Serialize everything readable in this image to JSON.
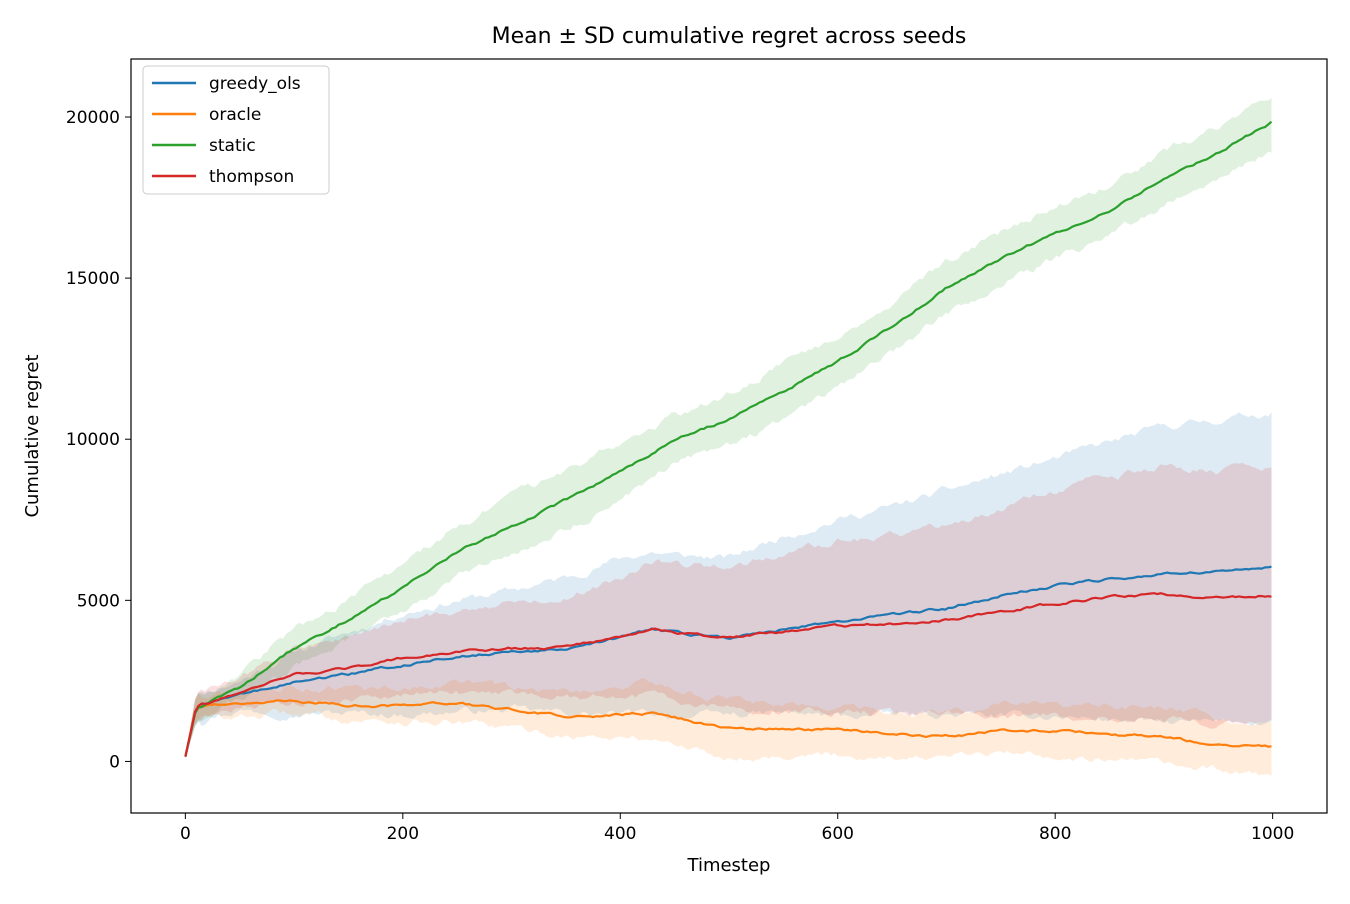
{
  "chart_data": {
    "type": "line",
    "title": "Mean ± SD cumulative regret across seeds",
    "xlabel": "Timestep",
    "ylabel": "Cumulative regret",
    "xlim": [
      -50,
      1050
    ],
    "ylim": [
      -1600,
      21800
    ],
    "xticks": [
      0,
      200,
      400,
      600,
      800,
      1000
    ],
    "yticks": [
      0,
      5000,
      10000,
      15000,
      20000
    ],
    "grid": false,
    "legend_position": "top-left",
    "series": [
      {
        "name": "greedy_ols",
        "color": "#1f77b4",
        "band_opacity": 0.15,
        "x": [
          0,
          10,
          20,
          50,
          100,
          150,
          200,
          250,
          300,
          350,
          400,
          430,
          450,
          500,
          550,
          600,
          650,
          700,
          750,
          800,
          850,
          900,
          950,
          1000
        ],
        "mean": [
          150,
          1650,
          1800,
          2050,
          2450,
          2700,
          3000,
          3250,
          3400,
          3450,
          3850,
          4100,
          4000,
          3850,
          4100,
          4350,
          4550,
          4750,
          5150,
          5450,
          5650,
          5850,
          5900,
          6050
        ],
        "lower": [
          100,
          1200,
          1400,
          1600,
          1500,
          1500,
          1450,
          1550,
          1600,
          1500,
          1450,
          1500,
          1400,
          1450,
          1500,
          1400,
          1450,
          1450,
          1400,
          1400,
          1300,
          1200,
          1200,
          1250
        ],
        "upper": [
          200,
          2100,
          2200,
          2500,
          3400,
          4000,
          4600,
          5000,
          5300,
          5700,
          6300,
          6500,
          6400,
          6300,
          7000,
          7500,
          7900,
          8400,
          8900,
          9400,
          9900,
          10400,
          10600,
          10850
        ]
      },
      {
        "name": "oracle",
        "color": "#ff7f0e",
        "band_opacity": 0.15,
        "x": [
          0,
          10,
          20,
          50,
          100,
          150,
          200,
          250,
          300,
          350,
          400,
          430,
          450,
          500,
          550,
          600,
          650,
          700,
          750,
          800,
          850,
          900,
          950,
          1000
        ],
        "mean": [
          150,
          1700,
          1750,
          1800,
          1900,
          1750,
          1750,
          1800,
          1600,
          1400,
          1450,
          1500,
          1350,
          1000,
          1000,
          1000,
          850,
          800,
          950,
          950,
          850,
          750,
          500,
          450
        ],
        "lower": [
          100,
          1300,
          1350,
          1400,
          1500,
          1300,
          1250,
          1200,
          1000,
          800,
          700,
          700,
          550,
          100,
          200,
          200,
          150,
          100,
          250,
          200,
          50,
          -100,
          -300,
          -450
        ],
        "upper": [
          200,
          2100,
          2150,
          2200,
          2300,
          2250,
          2300,
          2450,
          2300,
          2150,
          2350,
          2450,
          2250,
          1900,
          1800,
          1750,
          1600,
          1500,
          1750,
          1750,
          1650,
          1600,
          1300,
          1300
        ]
      },
      {
        "name": "static",
        "color": "#2ca02c",
        "band_opacity": 0.15,
        "x": [
          0,
          10,
          20,
          50,
          100,
          150,
          200,
          250,
          300,
          350,
          400,
          450,
          500,
          550,
          600,
          650,
          700,
          750,
          800,
          850,
          900,
          950,
          1000
        ],
        "mean": [
          150,
          1650,
          1800,
          2300,
          3500,
          4400,
          5400,
          6500,
          7300,
          8100,
          9000,
          10000,
          10600,
          11500,
          12400,
          13500,
          14700,
          15600,
          16400,
          17100,
          18100,
          18900,
          19850
        ],
        "lower": [
          100,
          1200,
          1450,
          1900,
          2900,
          3800,
          4700,
          5700,
          6400,
          7200,
          8100,
          9300,
          9800,
          10600,
          11600,
          12700,
          13900,
          14800,
          15600,
          16300,
          17300,
          18100,
          19000
        ],
        "upper": [
          200,
          2100,
          2200,
          2700,
          4100,
          5000,
          6100,
          7300,
          8200,
          9000,
          9900,
          10700,
          11400,
          12400,
          13200,
          14300,
          15500,
          16400,
          17200,
          17900,
          18900,
          19700,
          20750
        ]
      },
      {
        "name": "thompson",
        "color": "#d62728",
        "band_opacity": 0.15,
        "x": [
          0,
          10,
          20,
          50,
          100,
          150,
          200,
          250,
          300,
          350,
          400,
          430,
          450,
          500,
          550,
          600,
          650,
          700,
          750,
          800,
          850,
          900,
          950,
          1000
        ],
        "mean": [
          150,
          1700,
          1800,
          2100,
          2700,
          2900,
          3200,
          3400,
          3500,
          3550,
          3850,
          4150,
          4000,
          3850,
          4000,
          4200,
          4250,
          4400,
          4650,
          4900,
          5100,
          5200,
          5100,
          5150
        ],
        "lower": [
          100,
          1250,
          1400,
          1650,
          1850,
          1950,
          2050,
          2100,
          2100,
          2000,
          2000,
          2050,
          1900,
          1600,
          1600,
          1550,
          1500,
          1450,
          1450,
          1400,
          1350,
          1250,
          1200,
          1200
        ],
        "upper": [
          200,
          2150,
          2200,
          2550,
          3550,
          3850,
          4350,
          4700,
          4900,
          5100,
          5700,
          6250,
          6100,
          6100,
          6400,
          6850,
          7000,
          7350,
          7850,
          8400,
          8850,
          9150,
          9000,
          9100
        ]
      }
    ]
  }
}
